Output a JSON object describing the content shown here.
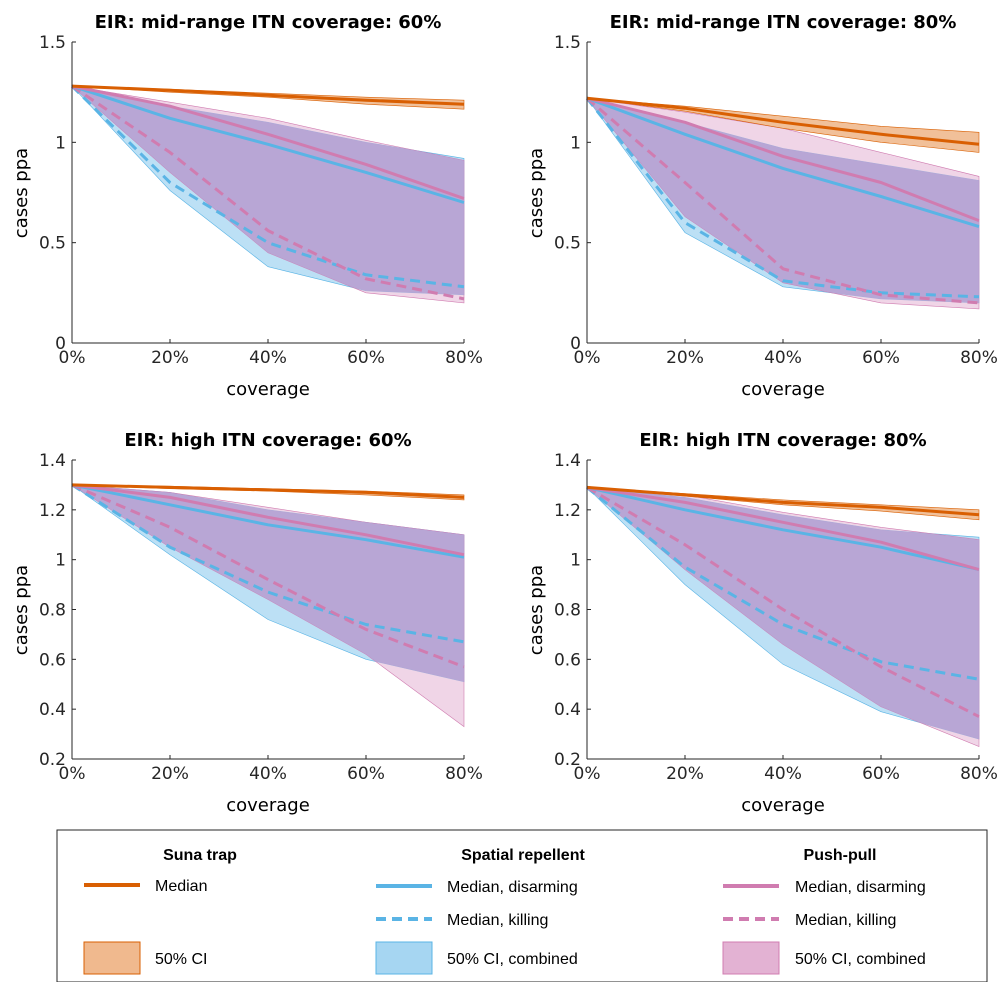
{
  "colors": {
    "suna": "#d95f02",
    "suna_ci": "#f0b98e",
    "repellent": "#5ab4e5",
    "repellent_ci": "#a6d6f2",
    "pushpull": "#d07cb0",
    "pushpull_ci": "#e3b2d3",
    "overlap": "#b4a0d2"
  },
  "chart_data": [
    {
      "type": "line",
      "title": "EIR: mid-range   ITN coverage: 60%",
      "xlabel": "coverage",
      "ylabel": "cases ppa",
      "x": [
        0,
        20,
        40,
        60,
        80
      ],
      "x_ticks": [
        "0%",
        "20%",
        "40%",
        "60%",
        "80%"
      ],
      "ylim": [
        0,
        1.5
      ],
      "y_ticks": [
        "0",
        "0.5",
        "1",
        "1.5"
      ],
      "series": [
        {
          "name": "Suna trap",
          "style": "median",
          "values": [
            1.28,
            1.26,
            1.235,
            1.21,
            1.19
          ]
        },
        {
          "name": "Suna trap",
          "style": "ci",
          "lower": [
            1.28,
            1.25,
            1.225,
            1.19,
            1.165
          ],
          "upper": [
            1.28,
            1.265,
            1.245,
            1.225,
            1.21
          ]
        },
        {
          "name": "Spatial repellent",
          "style": "median-disarming",
          "values": [
            1.28,
            1.12,
            0.99,
            0.85,
            0.7
          ]
        },
        {
          "name": "Spatial repellent",
          "style": "median-killing",
          "values": [
            1.28,
            0.8,
            0.5,
            0.34,
            0.28
          ]
        },
        {
          "name": "Spatial repellent",
          "style": "ci",
          "lower": [
            1.28,
            0.76,
            0.38,
            0.26,
            0.24
          ],
          "upper": [
            1.28,
            1.18,
            1.1,
            1.0,
            0.92
          ]
        },
        {
          "name": "Push-pull",
          "style": "median-disarming",
          "values": [
            1.28,
            1.18,
            1.04,
            0.89,
            0.72
          ]
        },
        {
          "name": "Push-pull",
          "style": "median-killing",
          "values": [
            1.28,
            0.95,
            0.56,
            0.32,
            0.22
          ]
        },
        {
          "name": "Push-pull",
          "style": "ci",
          "lower": [
            1.28,
            0.85,
            0.45,
            0.25,
            0.2
          ],
          "upper": [
            1.28,
            1.2,
            1.12,
            1.01,
            0.91
          ]
        }
      ]
    },
    {
      "type": "line",
      "title": "EIR: mid-range   ITN coverage: 80%",
      "xlabel": "coverage",
      "ylabel": "cases ppa",
      "x": [
        0,
        20,
        40,
        60,
        80
      ],
      "x_ticks": [
        "0%",
        "20%",
        "40%",
        "60%",
        "80%"
      ],
      "ylim": [
        0,
        1.5
      ],
      "y_ticks": [
        "0",
        "0.5",
        "1",
        "1.5"
      ],
      "series": [
        {
          "name": "Suna trap",
          "style": "median",
          "values": [
            1.22,
            1.17,
            1.1,
            1.04,
            0.99
          ]
        },
        {
          "name": "Suna trap",
          "style": "ci",
          "lower": [
            1.22,
            1.155,
            1.07,
            1.0,
            0.95
          ],
          "upper": [
            1.22,
            1.18,
            1.13,
            1.08,
            1.05
          ]
        },
        {
          "name": "Spatial repellent",
          "style": "median-disarming",
          "values": [
            1.22,
            1.04,
            0.87,
            0.73,
            0.58
          ]
        },
        {
          "name": "Spatial repellent",
          "style": "median-killing",
          "values": [
            1.22,
            0.6,
            0.31,
            0.25,
            0.23
          ]
        },
        {
          "name": "Spatial repellent",
          "style": "ci",
          "lower": [
            1.22,
            0.55,
            0.28,
            0.22,
            0.2
          ],
          "upper": [
            1.22,
            1.1,
            0.97,
            0.89,
            0.81
          ]
        },
        {
          "name": "Push-pull",
          "style": "median-disarming",
          "values": [
            1.22,
            1.1,
            0.93,
            0.8,
            0.61
          ]
        },
        {
          "name": "Push-pull",
          "style": "median-killing",
          "values": [
            1.22,
            0.8,
            0.37,
            0.24,
            0.2
          ]
        },
        {
          "name": "Push-pull",
          "style": "ci",
          "lower": [
            1.22,
            0.63,
            0.3,
            0.2,
            0.17
          ],
          "upper": [
            1.22,
            1.15,
            1.07,
            0.95,
            0.83
          ]
        }
      ]
    },
    {
      "type": "line",
      "title": "EIR: high   ITN coverage: 60%",
      "xlabel": "coverage",
      "ylabel": "cases ppa",
      "x": [
        0,
        20,
        40,
        60,
        80
      ],
      "x_ticks": [
        "0%",
        "20%",
        "40%",
        "60%",
        "80%"
      ],
      "ylim": [
        0.2,
        1.4
      ],
      "y_ticks": [
        "0.2",
        "0.4",
        "0.6",
        "0.8",
        "1",
        "1.2",
        "1.4"
      ],
      "series": [
        {
          "name": "Suna trap",
          "style": "median",
          "values": [
            1.3,
            1.29,
            1.28,
            1.27,
            1.25
          ]
        },
        {
          "name": "Suna trap",
          "style": "ci",
          "lower": [
            1.3,
            1.285,
            1.275,
            1.26,
            1.24
          ],
          "upper": [
            1.3,
            1.295,
            1.285,
            1.275,
            1.26
          ]
        },
        {
          "name": "Spatial repellent",
          "style": "median-disarming",
          "values": [
            1.3,
            1.22,
            1.14,
            1.08,
            1.01
          ]
        },
        {
          "name": "Spatial repellent",
          "style": "median-killing",
          "values": [
            1.3,
            1.05,
            0.87,
            0.74,
            0.67
          ]
        },
        {
          "name": "Spatial repellent",
          "style": "ci",
          "lower": [
            1.3,
            1.02,
            0.76,
            0.6,
            0.51
          ],
          "upper": [
            1.3,
            1.27,
            1.2,
            1.15,
            1.1
          ]
        },
        {
          "name": "Push-pull",
          "style": "median-disarming",
          "values": [
            1.3,
            1.25,
            1.17,
            1.1,
            1.02
          ]
        },
        {
          "name": "Push-pull",
          "style": "median-killing",
          "values": [
            1.3,
            1.13,
            0.92,
            0.72,
            0.57
          ]
        },
        {
          "name": "Push-pull",
          "style": "ci",
          "lower": [
            1.3,
            1.05,
            0.84,
            0.62,
            0.33
          ],
          "upper": [
            1.3,
            1.27,
            1.21,
            1.15,
            1.1
          ]
        }
      ]
    },
    {
      "type": "line",
      "title": "EIR: high   ITN coverage: 80%",
      "xlabel": "coverage",
      "ylabel": "cases ppa",
      "x": [
        0,
        20,
        40,
        60,
        80
      ],
      "x_ticks": [
        "0%",
        "20%",
        "40%",
        "60%",
        "80%"
      ],
      "ylim": [
        0.2,
        1.4
      ],
      "y_ticks": [
        "0.2",
        "0.4",
        "0.6",
        "0.8",
        "1",
        "1.2",
        "1.4"
      ],
      "series": [
        {
          "name": "Suna trap",
          "style": "median",
          "values": [
            1.29,
            1.26,
            1.23,
            1.21,
            1.18
          ]
        },
        {
          "name": "Suna trap",
          "style": "ci",
          "lower": [
            1.29,
            1.255,
            1.22,
            1.195,
            1.16
          ],
          "upper": [
            1.29,
            1.265,
            1.24,
            1.22,
            1.2
          ]
        },
        {
          "name": "Spatial repellent",
          "style": "median-disarming",
          "values": [
            1.29,
            1.2,
            1.12,
            1.05,
            0.96
          ]
        },
        {
          "name": "Spatial repellent",
          "style": "median-killing",
          "values": [
            1.29,
            0.97,
            0.74,
            0.59,
            0.52
          ]
        },
        {
          "name": "Spatial repellent",
          "style": "ci",
          "lower": [
            1.29,
            0.9,
            0.58,
            0.39,
            0.28
          ],
          "upper": [
            1.29,
            1.25,
            1.18,
            1.12,
            1.09
          ]
        },
        {
          "name": "Push-pull",
          "style": "median-disarming",
          "values": [
            1.29,
            1.23,
            1.15,
            1.07,
            0.96
          ]
        },
        {
          "name": "Push-pull",
          "style": "median-killing",
          "values": [
            1.29,
            1.06,
            0.8,
            0.57,
            0.37
          ]
        },
        {
          "name": "Push-pull",
          "style": "ci",
          "lower": [
            1.29,
            0.96,
            0.66,
            0.41,
            0.25
          ],
          "upper": [
            1.29,
            1.26,
            1.19,
            1.13,
            1.08
          ]
        }
      ]
    }
  ],
  "legend": {
    "groups": [
      {
        "heading": "Suna trap",
        "items": [
          {
            "kind": "solid",
            "color_key": "suna",
            "label": "Median"
          },
          {
            "kind": "patch",
            "color_key": "suna",
            "label": "50% CI"
          }
        ]
      },
      {
        "heading": "Spatial repellent",
        "items": [
          {
            "kind": "solid",
            "color_key": "repellent",
            "label": "Median, disarming"
          },
          {
            "kind": "dashed",
            "color_key": "repellent",
            "label": "Median, killing"
          },
          {
            "kind": "patch",
            "color_key": "repellent",
            "label": "50% CI, combined"
          }
        ]
      },
      {
        "heading": "Push-pull",
        "items": [
          {
            "kind": "solid",
            "color_key": "pushpull",
            "label": "Median, disarming"
          },
          {
            "kind": "dashed",
            "color_key": "pushpull",
            "label": "Median, killing"
          },
          {
            "kind": "patch",
            "color_key": "pushpull",
            "label": "50% CI, combined"
          }
        ]
      }
    ]
  }
}
